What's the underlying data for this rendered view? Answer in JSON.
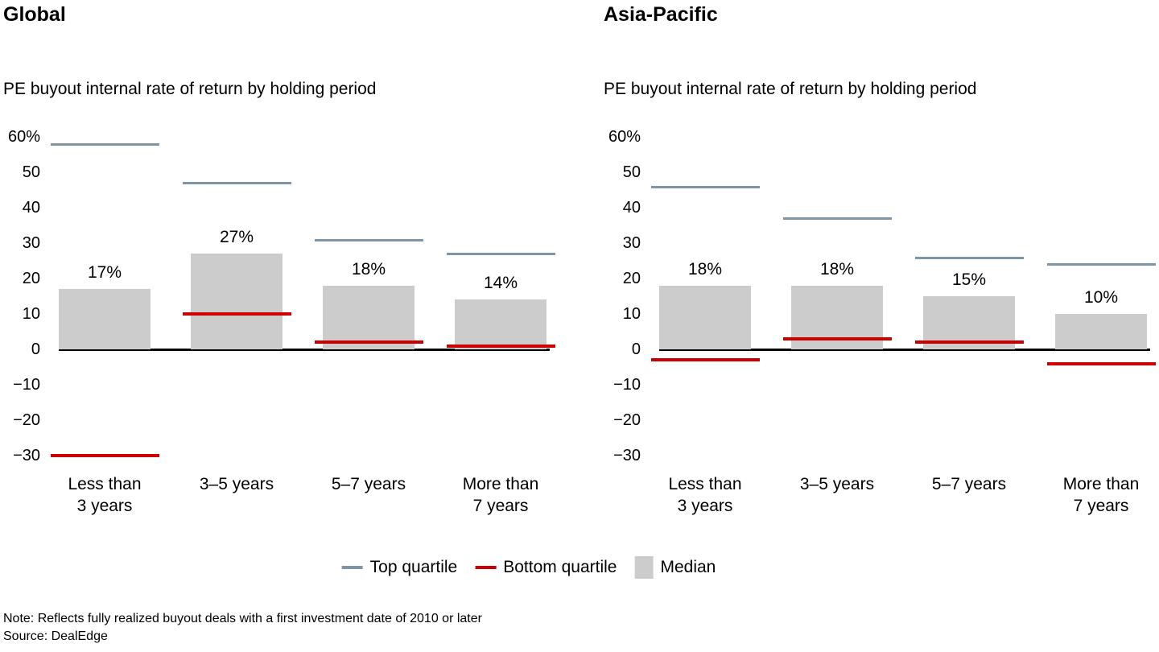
{
  "colors": {
    "bar": "#cccccc",
    "top_quartile": "#7e95a8",
    "bottom_quartile": "#cc0000",
    "baseline": "#000000"
  },
  "legend": {
    "items": [
      {
        "label": "Top quartile",
        "swatch": "line",
        "color": "#7e95a8"
      },
      {
        "label": "Bottom quartile",
        "swatch": "line",
        "color": "#cc0000"
      },
      {
        "label": "Median",
        "swatch": "box",
        "color": "#cccccc"
      }
    ]
  },
  "footnote": {
    "note": "Note: Reflects fully realized buyout deals with a first investment date of 2010 or later",
    "source": "Source: DealEdge"
  },
  "chart_data": [
    {
      "type": "bar",
      "region": "Global",
      "title": "PE buyout internal rate of return by holding period",
      "categories": [
        "Less than\n3 years",
        "3–5 years",
        "5–7 years",
        "More than\n7 years"
      ],
      "yticks": [
        "60%",
        "50",
        "40",
        "30",
        "20",
        "10",
        "0",
        "−10",
        "−20",
        "−30"
      ],
      "ylim": [
        -30,
        60
      ],
      "grid": false,
      "legend_position": "bottom",
      "series": [
        {
          "name": "Median",
          "values": [
            17,
            27,
            18,
            14
          ],
          "labels": [
            "17%",
            "27%",
            "18%",
            "14%"
          ]
        },
        {
          "name": "Top quartile",
          "values": [
            58,
            47,
            31,
            27
          ]
        },
        {
          "name": "Bottom quartile",
          "values": [
            -30,
            10,
            2,
            1
          ]
        }
      ]
    },
    {
      "type": "bar",
      "region": "Asia-Pacific",
      "title": "PE buyout internal rate of return by holding period",
      "categories": [
        "Less than\n3 years",
        "3–5 years",
        "5–7 years",
        "More than\n7 years"
      ],
      "yticks": [
        "60%",
        "50",
        "40",
        "30",
        "20",
        "10",
        "0",
        "−10",
        "−20",
        "−30"
      ],
      "ylim": [
        -30,
        60
      ],
      "grid": false,
      "legend_position": "bottom",
      "series": [
        {
          "name": "Median",
          "values": [
            18,
            18,
            15,
            10
          ],
          "labels": [
            "18%",
            "18%",
            "15%",
            "10%"
          ]
        },
        {
          "name": "Top quartile",
          "values": [
            46,
            37,
            26,
            24
          ]
        },
        {
          "name": "Bottom quartile",
          "values": [
            -3,
            3,
            2,
            -4
          ]
        }
      ]
    }
  ]
}
